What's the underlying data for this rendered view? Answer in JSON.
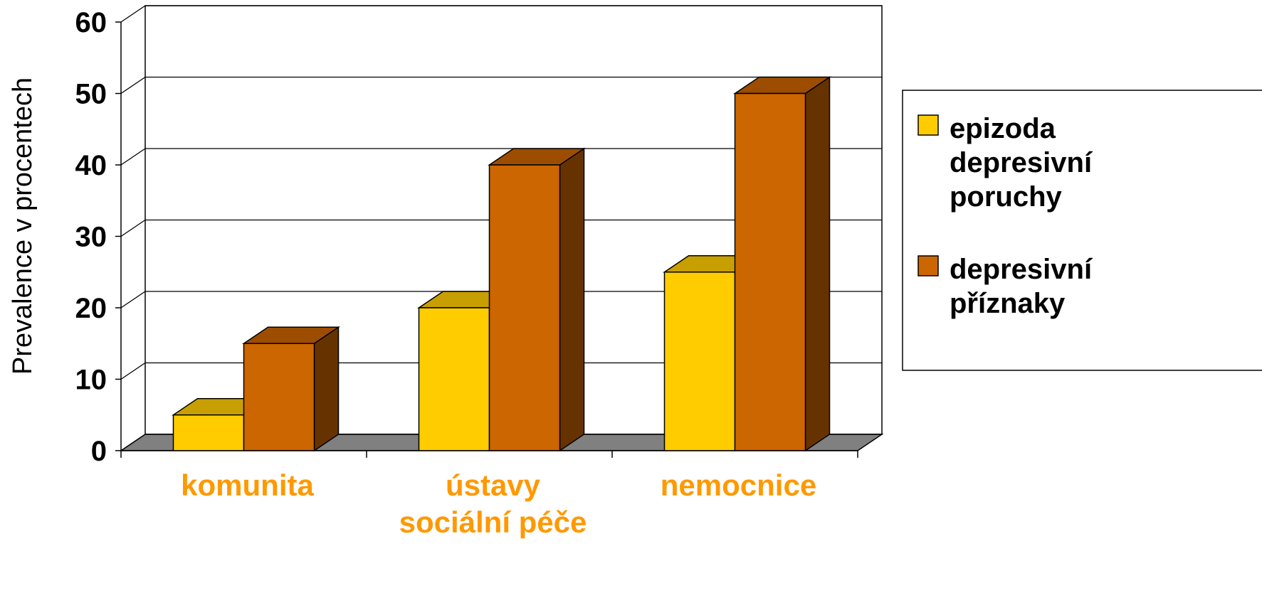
{
  "chart_data": {
    "type": "bar",
    "title": "",
    "xlabel": "",
    "ylabel": "Prevalence v procentech",
    "ylim": [
      0,
      60
    ],
    "yticks": [
      "0",
      "10",
      "20",
      "30",
      "40",
      "50",
      "60"
    ],
    "grid": true,
    "three_d": true,
    "legend_position": "right",
    "categories": [
      {
        "lines": [
          "komunita"
        ]
      },
      {
        "lines": [
          "ústavy",
          "sociální péče"
        ]
      },
      {
        "lines": [
          "nemocnice"
        ]
      }
    ],
    "series": [
      {
        "name_lines": [
          "epizoda",
          "depresivní",
          "poruchy"
        ],
        "values": [
          5,
          20,
          25
        ],
        "color_front": "#FFCC00",
        "color_top": "#C79F00",
        "color_side": "#A68400"
      },
      {
        "name_lines": [
          "depresivní",
          "příznaky"
        ],
        "values": [
          15,
          40,
          50
        ],
        "color_front": "#CC6600",
        "color_top": "#9C4D00",
        "color_side": "#663300"
      }
    ],
    "colors": {
      "floor": "#808080",
      "grid": "#000000",
      "category_text": "#FF9900"
    }
  }
}
